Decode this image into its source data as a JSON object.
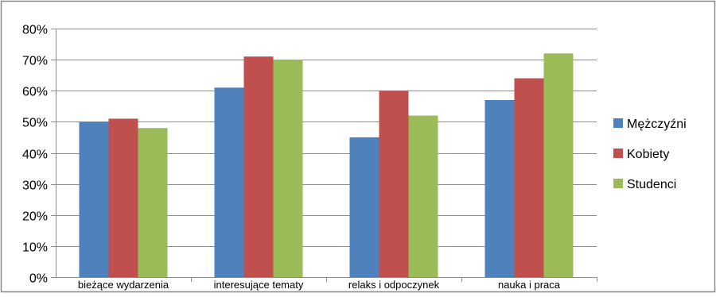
{
  "chart_data": {
    "type": "bar",
    "title": "",
    "xlabel": "",
    "ylabel": "",
    "categories": [
      "bieżące wydarzenia",
      "interesujące tematy",
      "relaks i odpoczynek",
      "nauka i praca"
    ],
    "series": [
      {
        "name": "Mężczyźni",
        "color": "#4F81BD",
        "values": [
          50,
          61,
          45,
          57
        ]
      },
      {
        "name": "Kobiety",
        "color": "#C0504D",
        "values": [
          51,
          71,
          60,
          64
        ]
      },
      {
        "name": "Studenci",
        "color": "#9BBB59",
        "values": [
          48,
          70,
          52,
          72
        ]
      }
    ],
    "ylim": [
      0,
      80
    ],
    "yticks": [
      0,
      10,
      20,
      30,
      40,
      50,
      60,
      70,
      80
    ],
    "ytick_labels": [
      "0%",
      "10%",
      "20%",
      "30%",
      "40%",
      "50%",
      "60%",
      "70%",
      "80%"
    ],
    "grid": true,
    "legend_position": "right"
  }
}
